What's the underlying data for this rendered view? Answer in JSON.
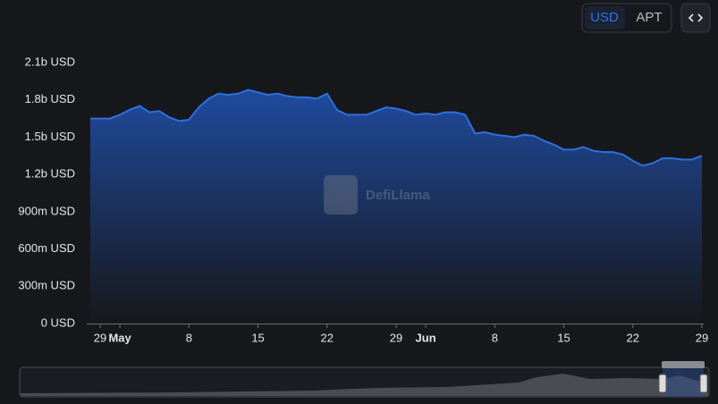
{
  "chart_data": {
    "type": "area",
    "currency_options": [
      "USD",
      "APT"
    ],
    "selected_currency": 0,
    "watermark": "DefiLlama",
    "categories": [
      null,
      "29",
      null,
      "May",
      null,
      null,
      null,
      null,
      null,
      null,
      "8",
      null,
      null,
      null,
      null,
      null,
      null,
      "15",
      null,
      null,
      null,
      null,
      null,
      null,
      "22",
      null,
      null,
      null,
      null,
      null,
      null,
      "29",
      null,
      null,
      "Jun",
      null,
      null,
      null,
      null,
      null,
      null,
      "8",
      null,
      null,
      null,
      null,
      null,
      null,
      "15",
      null,
      null,
      null,
      null,
      null,
      null,
      "22",
      null,
      null,
      null,
      null,
      null,
      null,
      "29"
    ],
    "values": [
      1650000000,
      1650000000,
      1650000000,
      1680000000,
      1720000000,
      1750000000,
      1700000000,
      1710000000,
      1660000000,
      1630000000,
      1640000000,
      1740000000,
      1810000000,
      1850000000,
      1840000000,
      1850000000,
      1880000000,
      1860000000,
      1840000000,
      1850000000,
      1830000000,
      1820000000,
      1820000000,
      1810000000,
      1850000000,
      1720000000,
      1680000000,
      1680000000,
      1680000000,
      1710000000,
      1740000000,
      1730000000,
      1710000000,
      1680000000,
      1690000000,
      1680000000,
      1700000000,
      1700000000,
      1680000000,
      1530000000,
      1540000000,
      1520000000,
      1510000000,
      1500000000,
      1520000000,
      1510000000,
      1470000000,
      1440000000,
      1400000000,
      1400000000,
      1420000000,
      1390000000,
      1380000000,
      1380000000,
      1360000000,
      1310000000,
      1270000000,
      1290000000,
      1330000000,
      1330000000,
      1320000000,
      1320000000,
      1350000000
    ],
    "color": "#2f6fe0",
    "ylim": [
      0,
      2100000000
    ],
    "yticks": [
      {
        "value": 0,
        "label": "0 USD"
      },
      {
        "value": 300000000,
        "label": "300m USD"
      },
      {
        "value": 600000000,
        "label": "600m USD"
      },
      {
        "value": 900000000,
        "label": "900m USD"
      },
      {
        "value": 1200000000,
        "label": "1.2b USD"
      },
      {
        "value": 1500000000,
        "label": "1.5b USD"
      },
      {
        "value": 1800000000,
        "label": "1.8b USD"
      },
      {
        "value": 2100000000,
        "label": "2.1b USD"
      }
    ],
    "grid": false
  }
}
